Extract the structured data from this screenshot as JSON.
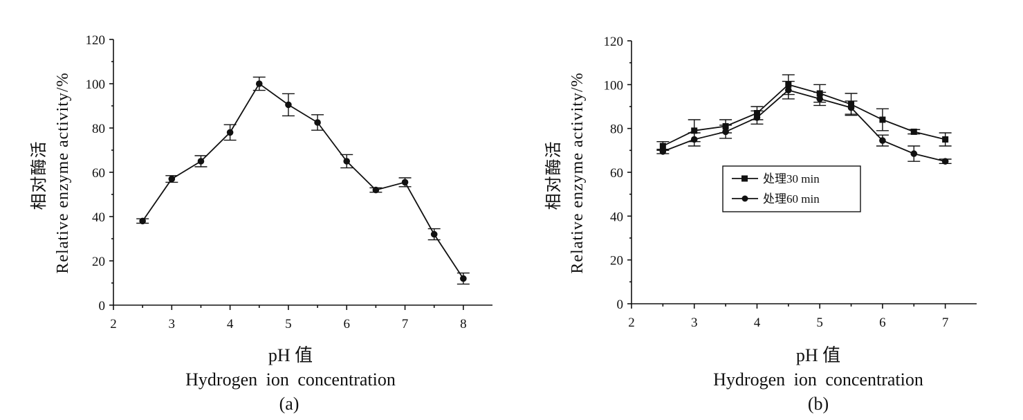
{
  "chart_data": [
    {
      "type": "line",
      "ylabel": "相对酶活 Relative enzyme activity/%",
      "ylabel_zh": "相对酶活",
      "ylabel_en": "Relative enzyme activity/%",
      "xlabel_zh": "pH 值",
      "xlabel_en": "Hydrogen ion concentration",
      "caption": "(a)",
      "xlim": [
        2,
        8.5
      ],
      "ylim": [
        0,
        120
      ],
      "xticks": [
        2,
        3,
        4,
        5,
        6,
        7,
        8
      ],
      "yticks": [
        0,
        20,
        40,
        60,
        80,
        100,
        120
      ],
      "grid": false,
      "series": [
        {
          "marker": "circle",
          "x": [
            2.5,
            3,
            3.5,
            4,
            4.5,
            5,
            5.5,
            6,
            6.5,
            7,
            7.5,
            8
          ],
          "y": [
            38,
            57,
            65,
            78,
            100,
            90.5,
            82.5,
            65,
            52,
            55.5,
            32,
            12
          ],
          "err": [
            1,
            1.5,
            2.5,
            3.5,
            3,
            5,
            3.5,
            3,
            1,
            2,
            2.5,
            2.5
          ]
        }
      ]
    },
    {
      "type": "line",
      "ylabel": "相对酶活 Relative enzyme activity/%",
      "ylabel_zh": "相对酶活",
      "ylabel_en": "Relative enzyme activity/%",
      "xlabel_zh": "pH 值",
      "xlabel_en": "Hydrogen ion concentration",
      "caption": "(b)",
      "xlim": [
        2,
        7.5
      ],
      "ylim": [
        0,
        120
      ],
      "xticks": [
        2,
        3,
        4,
        5,
        6,
        7
      ],
      "yticks": [
        0,
        20,
        40,
        60,
        80,
        100,
        120
      ],
      "grid": false,
      "legend_position": "center",
      "series": [
        {
          "name": "处理30 min",
          "marker": "square",
          "x": [
            2.5,
            3,
            3.5,
            4,
            4.5,
            5,
            5.5,
            6,
            6.5,
            7
          ],
          "y": [
            72,
            79,
            81,
            87,
            100,
            96,
            91,
            84,
            78.5,
            75
          ],
          "err": [
            2,
            5,
            3,
            3,
            4.5,
            4,
            5,
            5,
            1,
            3
          ]
        },
        {
          "name": "处理60 min",
          "marker": "circle",
          "x": [
            2.5,
            3,
            3.5,
            4,
            4.5,
            5,
            5.5,
            6,
            6.5,
            7
          ],
          "y": [
            69.5,
            75,
            78.5,
            85,
            97.5,
            93.5,
            89.5,
            74.5,
            68.5,
            65
          ],
          "err": [
            1,
            3,
            3,
            3,
            4,
            3,
            3,
            2.5,
            3.5,
            1
          ]
        }
      ]
    }
  ]
}
